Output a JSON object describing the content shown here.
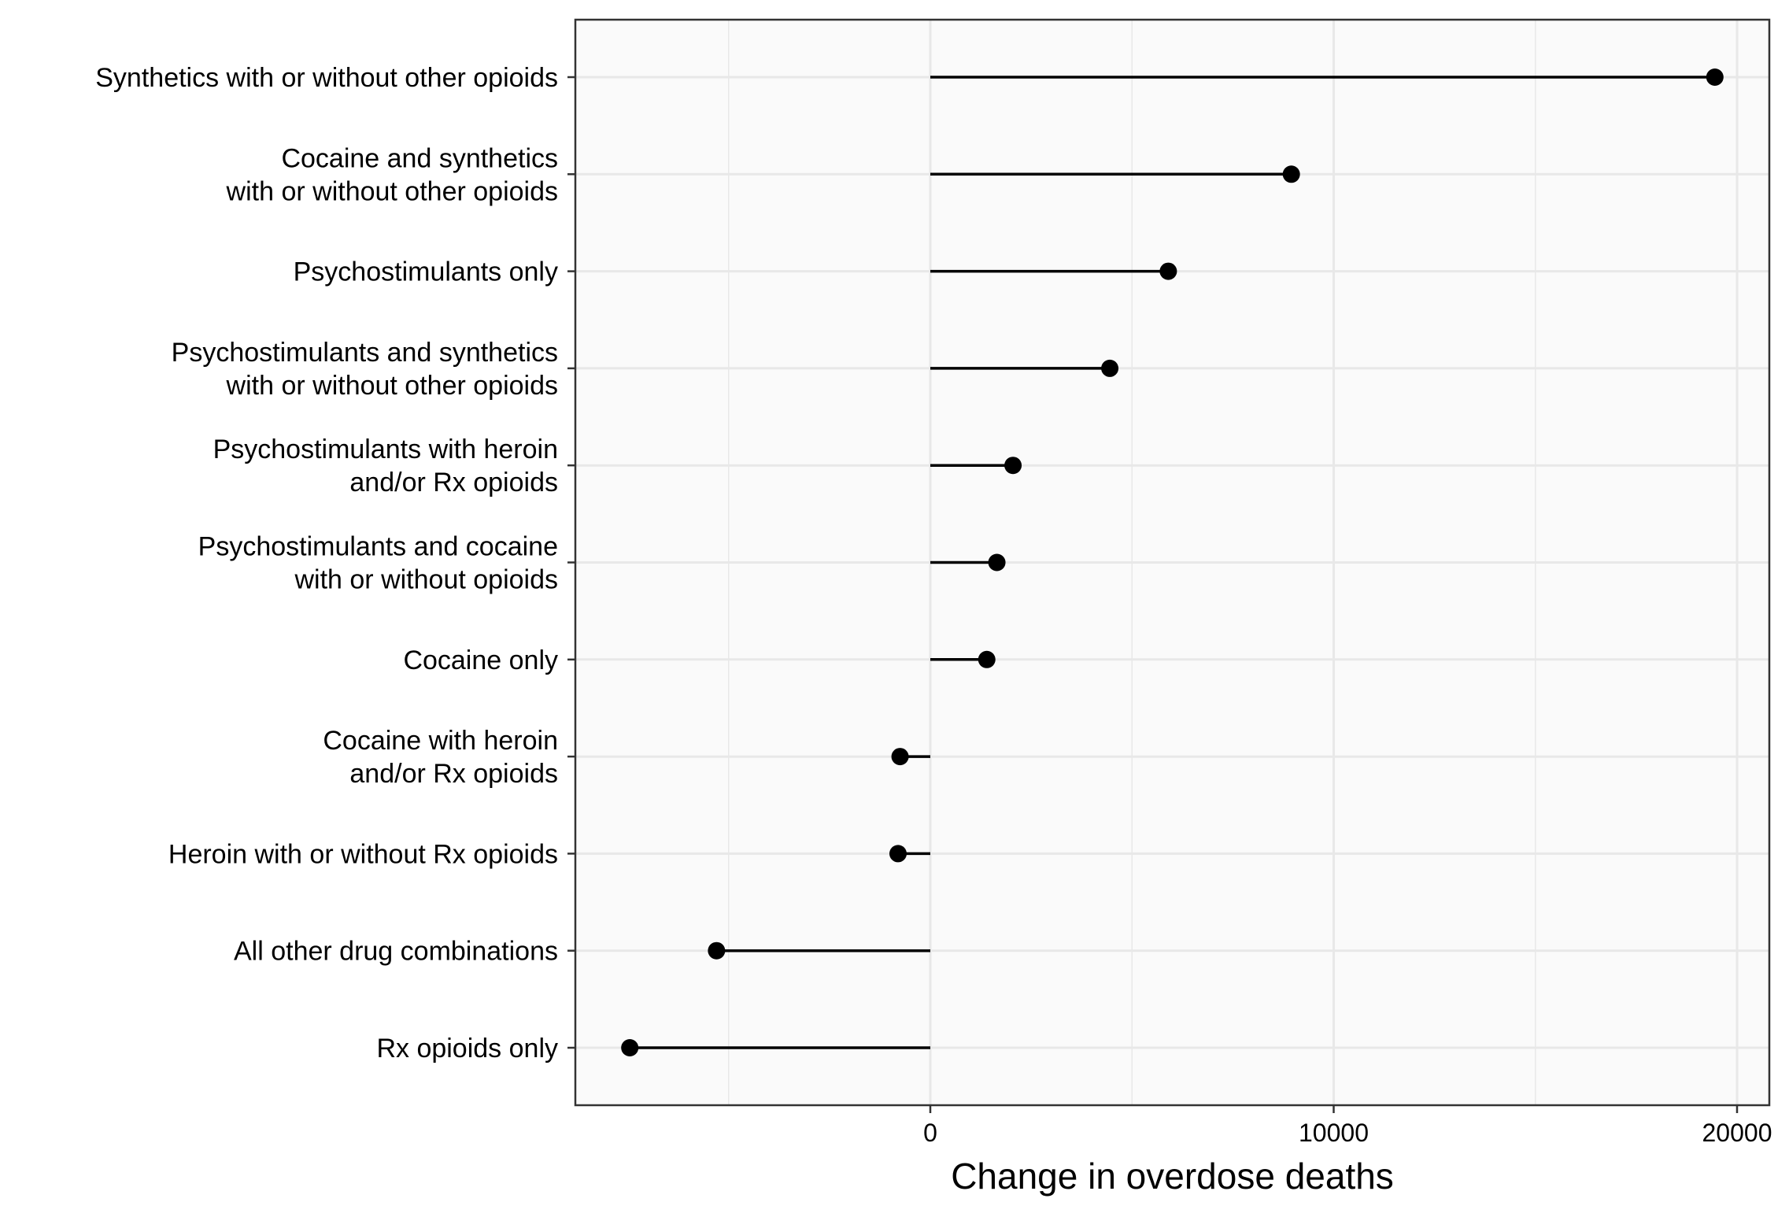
{
  "chart_data": {
    "type": "lollipop",
    "title": "",
    "xlabel": "Change in overdose deaths",
    "ylabel": "",
    "xlim": [
      -8800,
      20800
    ],
    "x_ticks": [
      0,
      10000,
      20000
    ],
    "x_minor_ticks": [
      -5000,
      5000,
      15000
    ],
    "baseline": 0,
    "grid": true,
    "categories": [
      "Synthetics with or without other opioids",
      "Cocaine and synthetics\nwith or without other opioids",
      "Psychostimulants only",
      "Psychostimulants and synthetics\nwith or without other opioids",
      "Psychostimulants with heroin\nand/or Rx opioids",
      "Psychostimulants and cocaine\nwith or without opioids",
      "Cocaine only",
      "Cocaine with heroin\nand/or Rx opioids",
      "Heroin with or without Rx opioids",
      "All other drug combinations",
      "Rx opioids only"
    ],
    "values": [
      19450,
      8950,
      5900,
      4450,
      2050,
      1650,
      1400,
      -750,
      -800,
      -5300,
      -7450
    ]
  },
  "colors": {
    "panel_background": "#fafafa",
    "grid": "#e8e8e8",
    "points": "#000000",
    "axis": "#333333"
  }
}
